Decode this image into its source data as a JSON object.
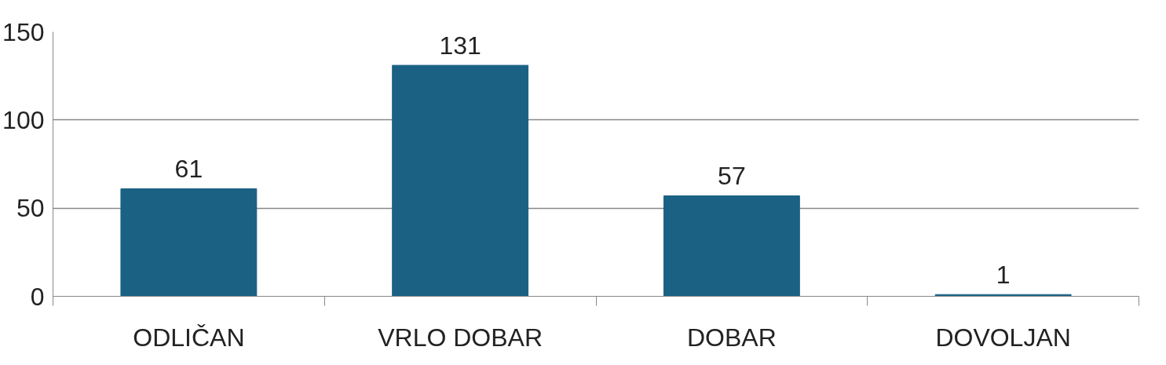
{
  "chart_data": {
    "type": "bar",
    "categories": [
      "ODLIČAN",
      "VRLO DOBAR",
      "DOBAR",
      "DOVOLJAN"
    ],
    "values": [
      61,
      131,
      57,
      1
    ],
    "color": "#1a6184",
    "ylim": [
      0,
      150
    ],
    "yticks": [
      0,
      50,
      100,
      150
    ],
    "grid": "y",
    "data_labels": true
  }
}
